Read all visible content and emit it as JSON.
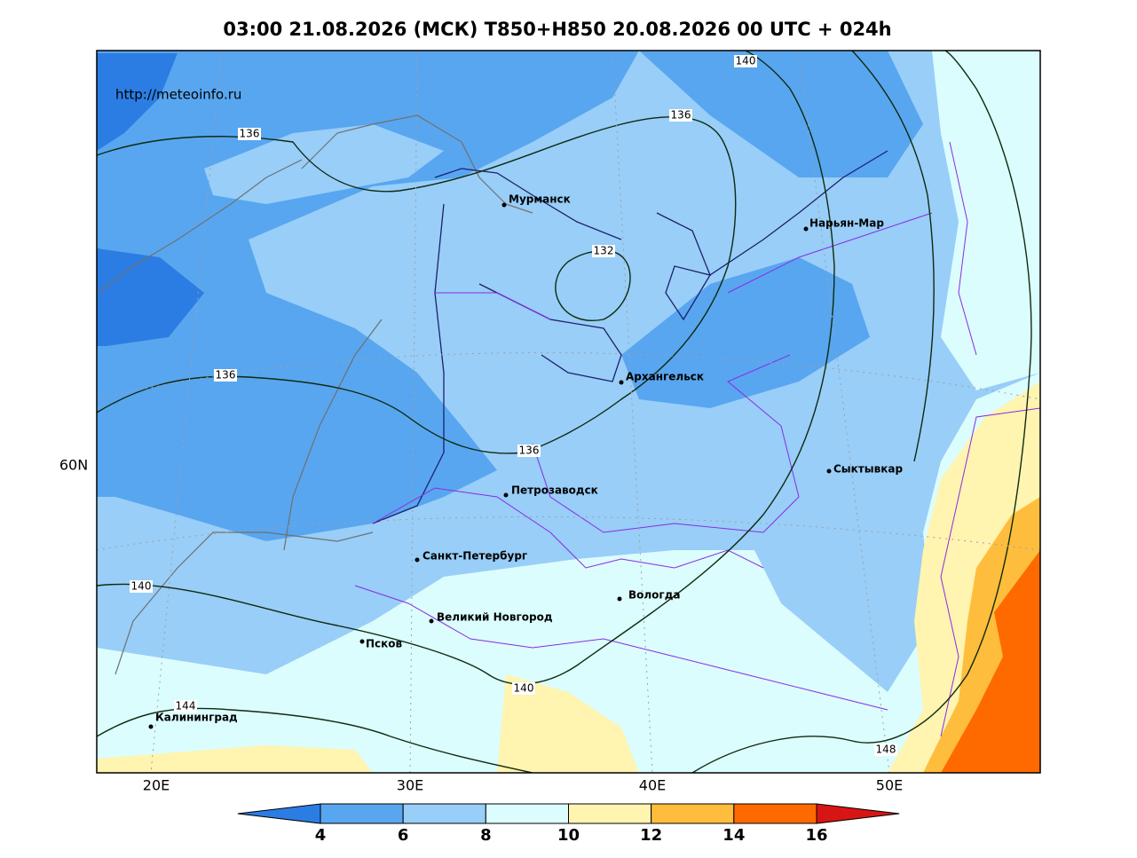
{
  "title": "03:00 21.08.2026 (МСК) T850+H850 20.08.2026 00 UTC + 024h",
  "source": "http://meteoinfo.ru",
  "axes": {
    "x_labels": [
      "20E",
      "30E",
      "40E",
      "50E"
    ],
    "y_labels": [
      "60N"
    ]
  },
  "cities": [
    "Мурманск",
    "Нарьян-Мар",
    "Архангельск",
    "Сыктывкар",
    "Петрозаводск",
    "Санкт-Петербург",
    "Вологда",
    "Великий Новгород",
    "Псков",
    "Калининград"
  ],
  "contour_labels": [
    140,
    136,
    136,
    132,
    136,
    136,
    140,
    140,
    144,
    148
  ],
  "colorbar": {
    "ticks": [
      4,
      6,
      8,
      10,
      12,
      14,
      16
    ],
    "colors": [
      "#2b7de3",
      "#58a6f0",
      "#98cef8",
      "#dcfdfd",
      "#fff4b0",
      "#ffbd3d",
      "#ff6a00",
      "#d81515"
    ]
  }
}
